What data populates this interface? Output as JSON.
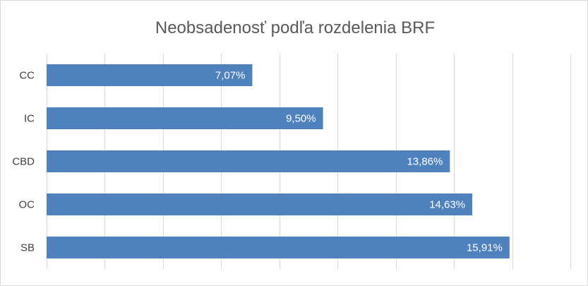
{
  "chart_data": {
    "type": "bar",
    "orientation": "horizontal",
    "title": "Neobsadenosť podľa rozdelenia BRF",
    "categories": [
      "CC",
      "IC",
      "CBD",
      "OC",
      "SB"
    ],
    "values": [
      7.07,
      9.5,
      13.86,
      14.63,
      15.91
    ],
    "data_labels": [
      "7,07%",
      "9,50%",
      "13,86%",
      "14,63%",
      "15,91%"
    ],
    "xlim": [
      0,
      18
    ],
    "x_gridline_step": 2,
    "grid": true,
    "legend": "none",
    "colors": {
      "bar": "#4f81bd",
      "grid": "#d9d9d9",
      "label": "#ffffff",
      "axis_text": "#404040",
      "title": "#595959"
    }
  }
}
